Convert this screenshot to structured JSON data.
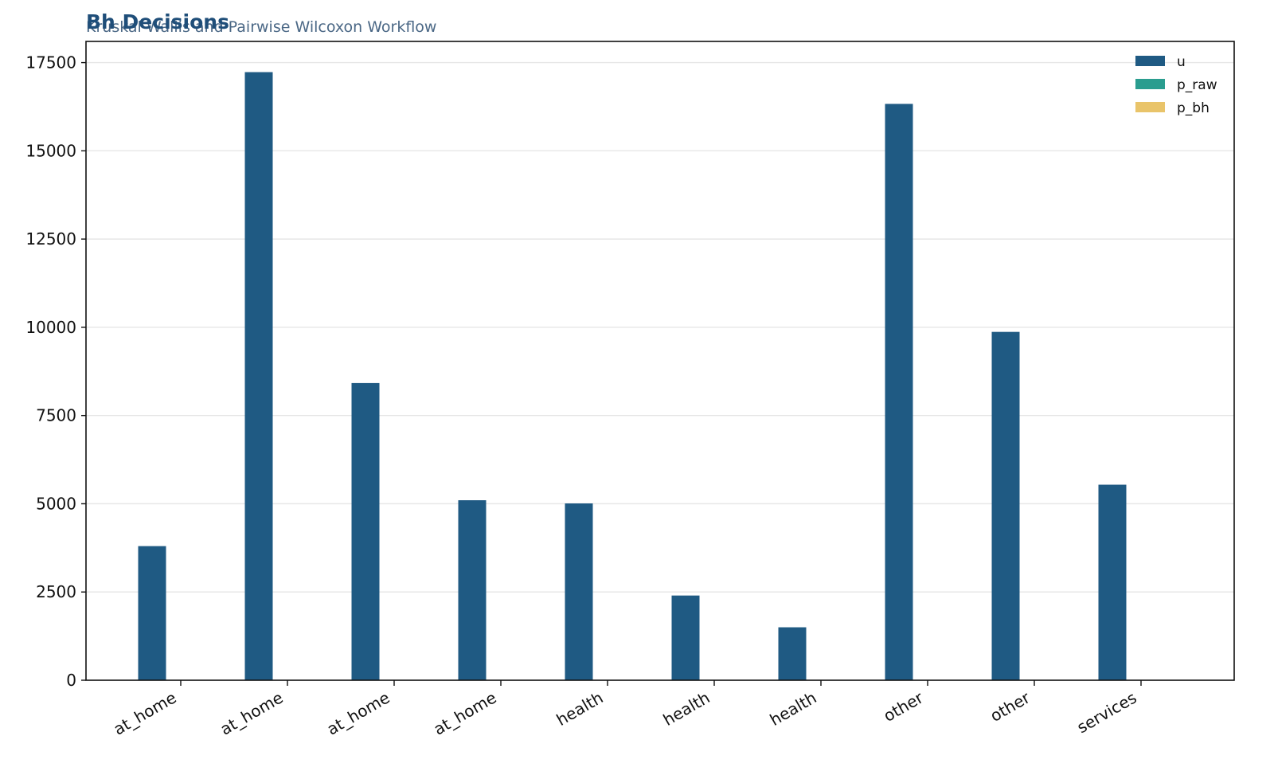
{
  "chart_data": {
    "type": "bar",
    "title": "Bh Decisions",
    "subtitle": "Kruskal-Wallis and Pairwise Wilcoxon Workflow",
    "xlabel": "",
    "ylabel": "",
    "categories": [
      "at_home",
      "at_home",
      "at_home",
      "at_home",
      "health",
      "health",
      "health",
      "other",
      "other",
      "services"
    ],
    "series": [
      {
        "name": "u",
        "color": "#1f5a83",
        "values": [
          3800,
          17230,
          8420,
          5100,
          5010,
          2400,
          1500,
          16330,
          9870,
          5540
        ]
      },
      {
        "name": "p_raw",
        "color": "#2a9d8f",
        "values": [
          0.002,
          0.0001,
          0.03,
          0.01,
          0.04,
          0.002,
          0.0003,
          0.0001,
          0.02,
          0.008
        ]
      },
      {
        "name": "p_bh",
        "color": "#e9c46a",
        "values": [
          0.005,
          0.0005,
          0.04,
          0.02,
          0.05,
          0.005,
          0.001,
          0.0005,
          0.03,
          0.015
        ]
      }
    ],
    "ylim": [
      0,
      18100
    ],
    "yticks": [
      0,
      2500,
      5000,
      7500,
      10000,
      12500,
      15000,
      17500
    ],
    "ytick_labels": [
      "0",
      "2500",
      "5000",
      "7500",
      "10000",
      "12500",
      "15000",
      "17500"
    ],
    "grid": "y",
    "legend_position": "top-right"
  }
}
